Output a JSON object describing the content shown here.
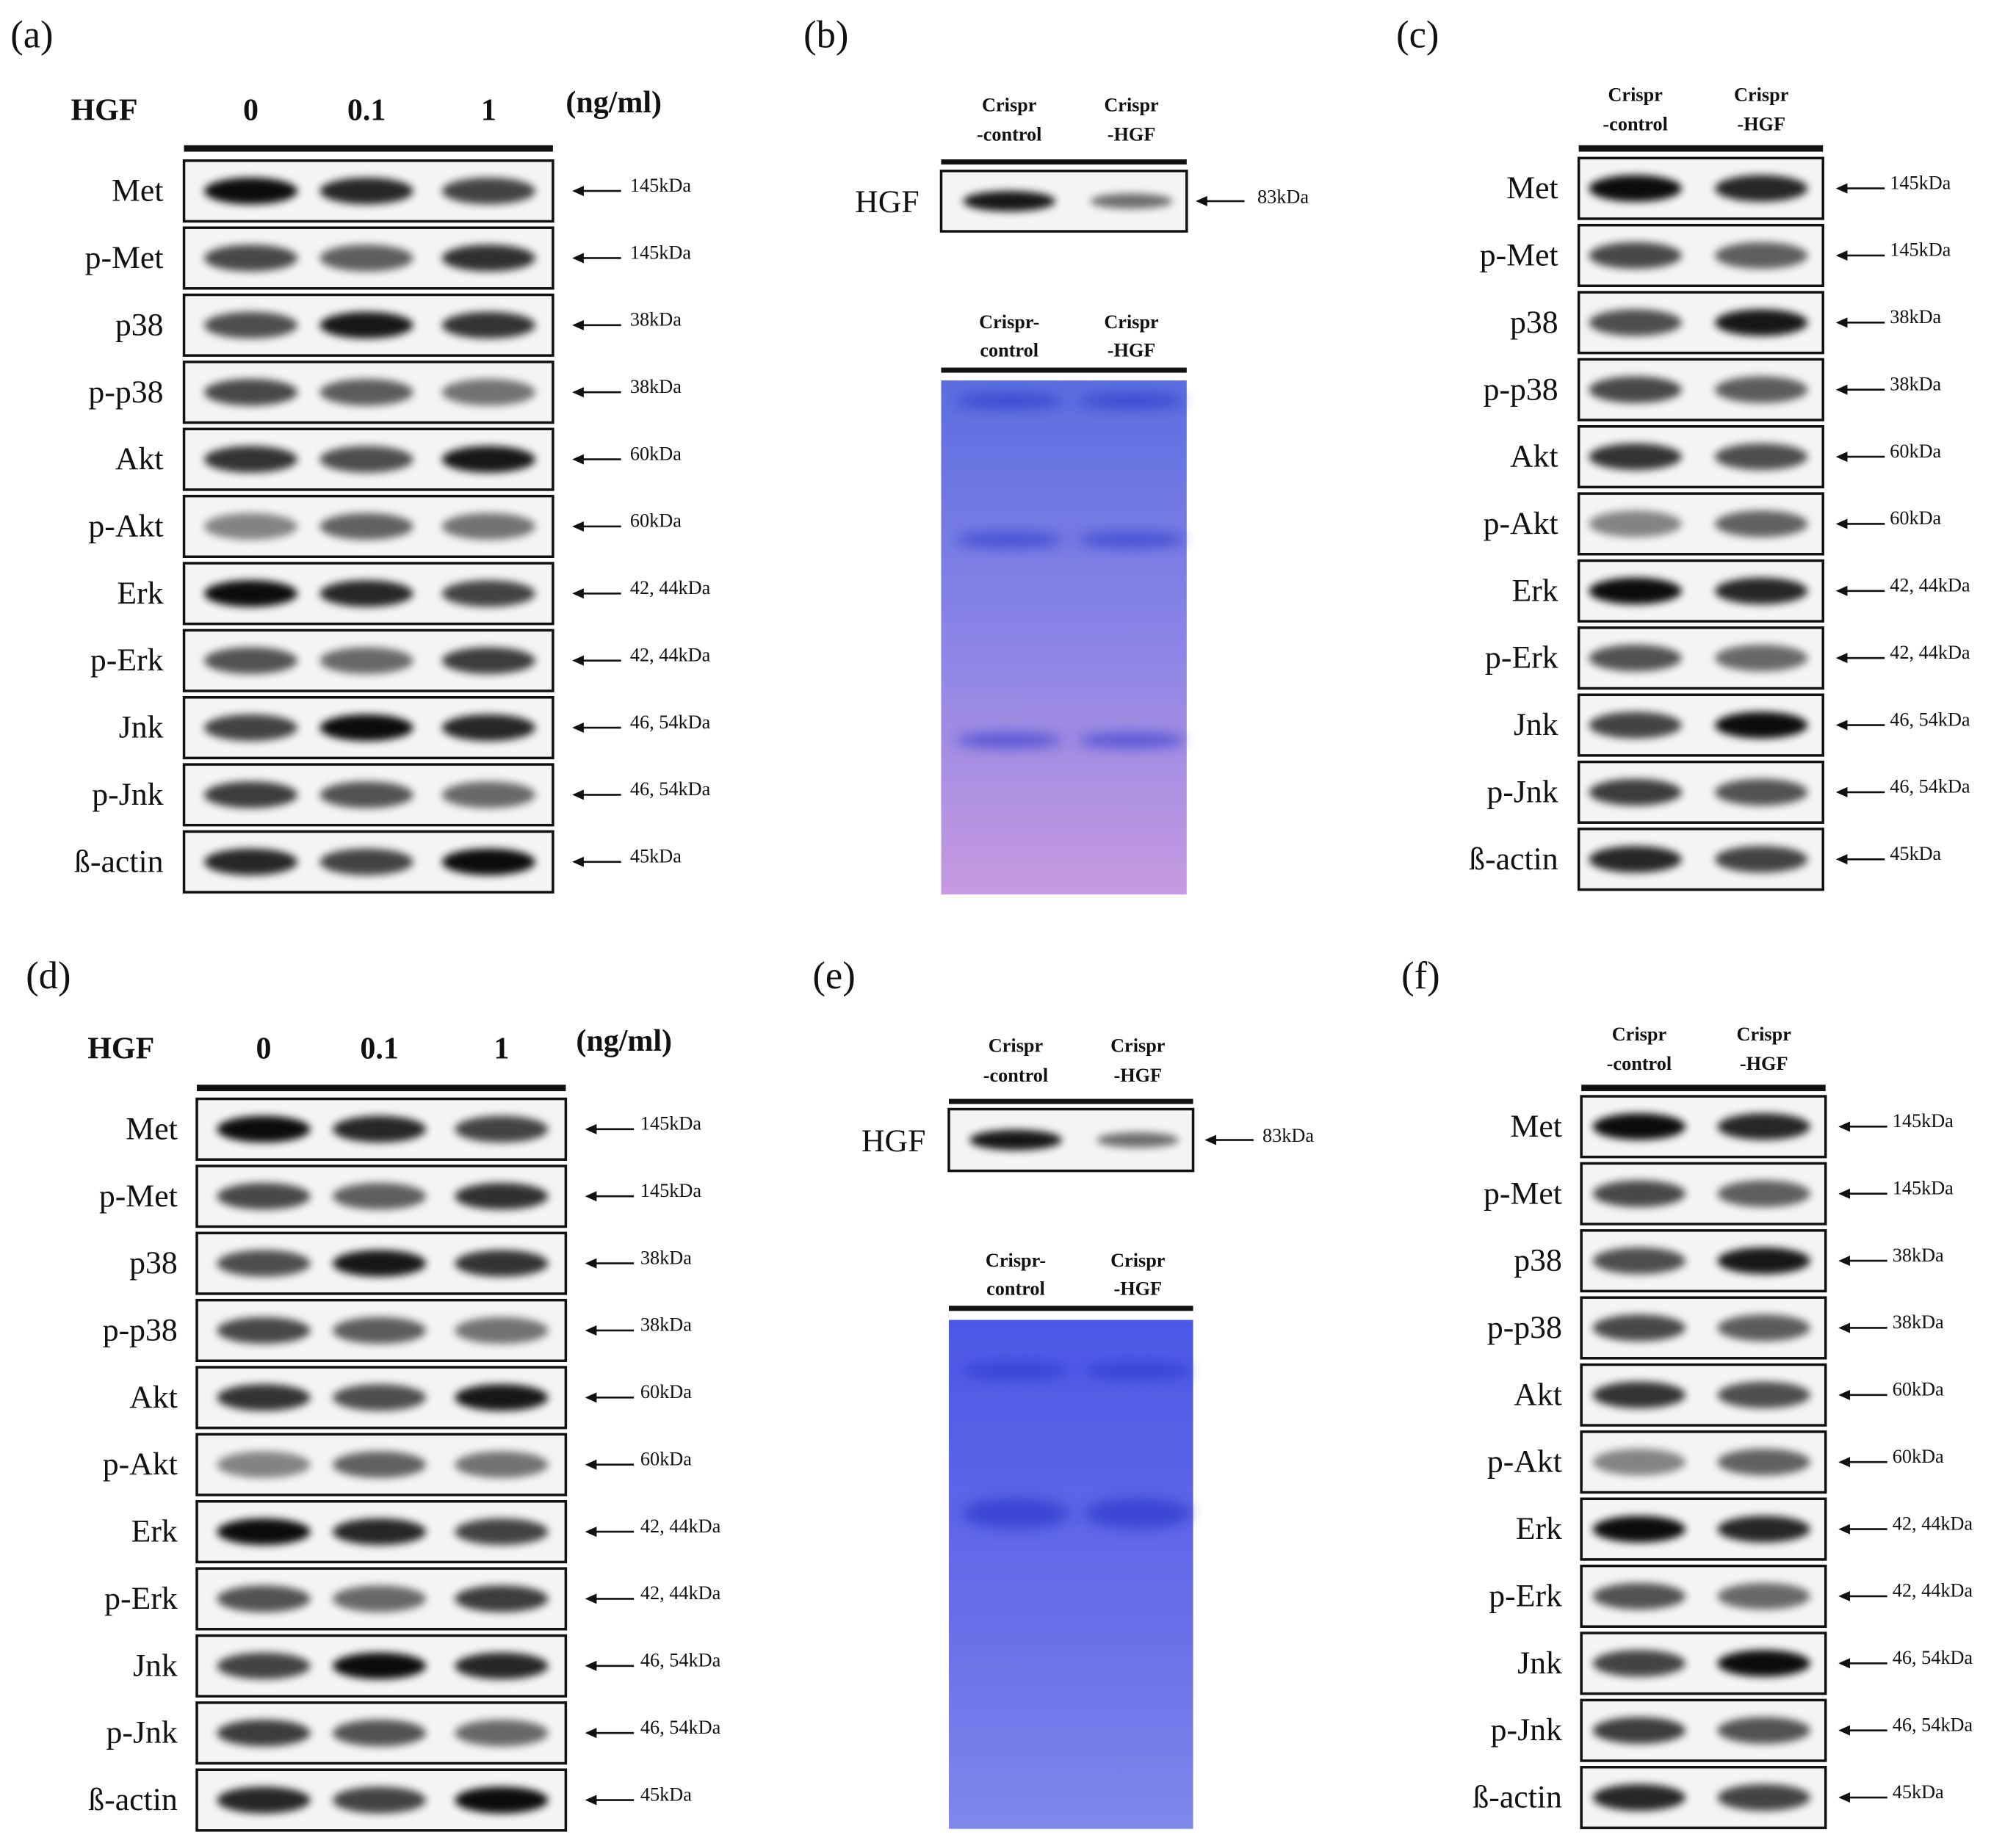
{
  "panels": [
    {
      "label": "(a)",
      "header": {
        "name": "HGF",
        "lanes": [
          "0",
          "0.1",
          "1"
        ],
        "unit": "(ng/ml)"
      },
      "rows": [
        {
          "protein": "Met",
          "size": "145kDa"
        },
        {
          "protein": "p-Met",
          "size": "145kDa"
        },
        {
          "protein": "p38",
          "size": "38kDa"
        },
        {
          "protein": "p-p38",
          "size": "38kDa"
        },
        {
          "protein": "Akt",
          "size": "60kDa"
        },
        {
          "protein": "p-Akt",
          "size": "60kDa"
        },
        {
          "protein": "Erk",
          "size": "42, 44kDa"
        },
        {
          "protein": "p-Erk",
          "size": "42, 44kDa"
        },
        {
          "protein": "Jnk",
          "size": "46, 54kDa"
        },
        {
          "protein": "p-Jnk",
          "size": "46, 54kDa"
        },
        {
          "protein": "ß-actin",
          "size": "45kDa"
        }
      ]
    },
    {
      "label": "(b)",
      "blot": {
        "lanes": [
          [
            "Crispr",
            "-control"
          ],
          [
            "Crispr",
            "-HGF"
          ]
        ],
        "protein": "HGF",
        "size": "83kDa"
      },
      "gel": {
        "lanes": [
          [
            "Crispr-",
            "control"
          ],
          [
            "Crispr",
            "-HGF"
          ]
        ]
      }
    },
    {
      "label": "(c)",
      "header": {
        "lanes": [
          [
            "Crispr",
            "-control"
          ],
          [
            "Crispr",
            "-HGF"
          ]
        ]
      },
      "rows": [
        {
          "protein": "Met",
          "size": "145kDa"
        },
        {
          "protein": "p-Met",
          "size": "145kDa"
        },
        {
          "protein": "p38",
          "size": "38kDa"
        },
        {
          "protein": "p-p38",
          "size": "38kDa"
        },
        {
          "protein": "Akt",
          "size": "60kDa"
        },
        {
          "protein": "p-Akt",
          "size": "60kDa"
        },
        {
          "protein": "Erk",
          "size": "42, 44kDa"
        },
        {
          "protein": "p-Erk",
          "size": "42, 44kDa"
        },
        {
          "protein": "Jnk",
          "size": "46, 54kDa"
        },
        {
          "protein": "p-Jnk",
          "size": "46, 54kDa"
        },
        {
          "protein": "ß-actin",
          "size": "45kDa"
        }
      ]
    },
    {
      "label": "(d)",
      "header": {
        "name": "HGF",
        "lanes": [
          "0",
          "0.1",
          "1"
        ],
        "unit": "(ng/ml)"
      },
      "rows": [
        {
          "protein": "Met",
          "size": "145kDa"
        },
        {
          "protein": "p-Met",
          "size": "145kDa"
        },
        {
          "protein": "p38",
          "size": "38kDa"
        },
        {
          "protein": "p-p38",
          "size": "38kDa"
        },
        {
          "protein": "Akt",
          "size": "60kDa"
        },
        {
          "protein": "p-Akt",
          "size": "60kDa"
        },
        {
          "protein": "Erk",
          "size": "42, 44kDa"
        },
        {
          "protein": "p-Erk",
          "size": "42, 44kDa"
        },
        {
          "protein": "Jnk",
          "size": "46, 54kDa"
        },
        {
          "protein": "p-Jnk",
          "size": "46, 54kDa"
        },
        {
          "protein": "ß-actin",
          "size": "45kDa"
        }
      ]
    },
    {
      "label": "(e)",
      "blot": {
        "lanes": [
          [
            "Crispr",
            "-control"
          ],
          [
            "Crispr",
            "-HGF"
          ]
        ],
        "protein": "HGF",
        "size": "83kDa"
      },
      "gel": {
        "lanes": [
          [
            "Crispr-",
            "control"
          ],
          [
            "Crispr",
            "-HGF"
          ]
        ]
      }
    },
    {
      "label": "(f)",
      "header": {
        "lanes": [
          [
            "Crispr",
            "-control"
          ],
          [
            "Crispr",
            "-HGF"
          ]
        ]
      },
      "rows": [
        {
          "protein": "Met",
          "size": "145kDa"
        },
        {
          "protein": "p-Met",
          "size": "145kDa"
        },
        {
          "protein": "p38",
          "size": "38kDa"
        },
        {
          "protein": "p-p38",
          "size": "38kDa"
        },
        {
          "protein": "Akt",
          "size": "60kDa"
        },
        {
          "protein": "p-Akt",
          "size": "60kDa"
        },
        {
          "protein": "Erk",
          "size": "42, 44kDa"
        },
        {
          "protein": "p-Erk",
          "size": "42, 44kDa"
        },
        {
          "protein": "Jnk",
          "size": "46, 54kDa"
        },
        {
          "protein": "p-Jnk",
          "size": "46, 54kDa"
        },
        {
          "protein": "ß-actin",
          "size": "45kDa"
        }
      ]
    }
  ]
}
